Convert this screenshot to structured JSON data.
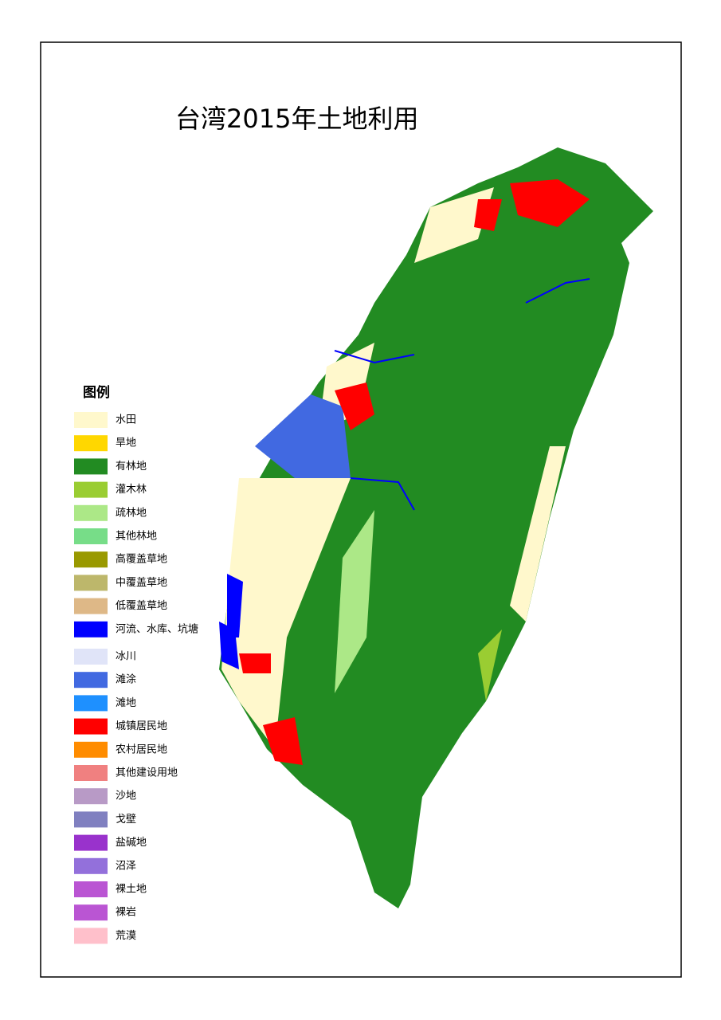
{
  "title": "台湾2015年土地利用",
  "legend": {
    "title": "图例",
    "items": [
      {
        "label": "水田",
        "color": "#fff8cc"
      },
      {
        "label": "旱地",
        "color": "#ffd700"
      },
      {
        "label": "有林地",
        "color": "#228b22"
      },
      {
        "label": "灌木林",
        "color": "#9acd32"
      },
      {
        "label": "疏林地",
        "color": "#ace887"
      },
      {
        "label": "其他林地",
        "color": "#77dd88"
      },
      {
        "label": "高覆盖草地",
        "color": "#999900"
      },
      {
        "label": "中覆盖草地",
        "color": "#bdb76b"
      },
      {
        "label": "低覆盖草地",
        "color": "#deb887"
      },
      {
        "label": "河流、水库、坑塘",
        "color": "#0000ff"
      },
      {
        "label": "冰川",
        "color": "#e0e4f8"
      },
      {
        "label": "滩涂",
        "color": "#4169e1"
      },
      {
        "label": "滩地",
        "color": "#1e90ff"
      },
      {
        "label": "城镇居民地",
        "color": "#ff0000"
      },
      {
        "label": "农村居民地",
        "color": "#ff8c00"
      },
      {
        "label": "其他建设用地",
        "color": "#f08080"
      },
      {
        "label": "沙地",
        "color": "#b89ac6"
      },
      {
        "label": "戈壁",
        "color": "#8080c0"
      },
      {
        "label": "盐碱地",
        "color": "#9932cc"
      },
      {
        "label": "沼泽",
        "color": "#9370db"
      },
      {
        "label": "裸土地",
        "color": "#ba55d3"
      },
      {
        "label": "裸岩",
        "color": "#ba55d3"
      },
      {
        "label": "荒漠",
        "color": "#ffc0cb"
      }
    ]
  }
}
